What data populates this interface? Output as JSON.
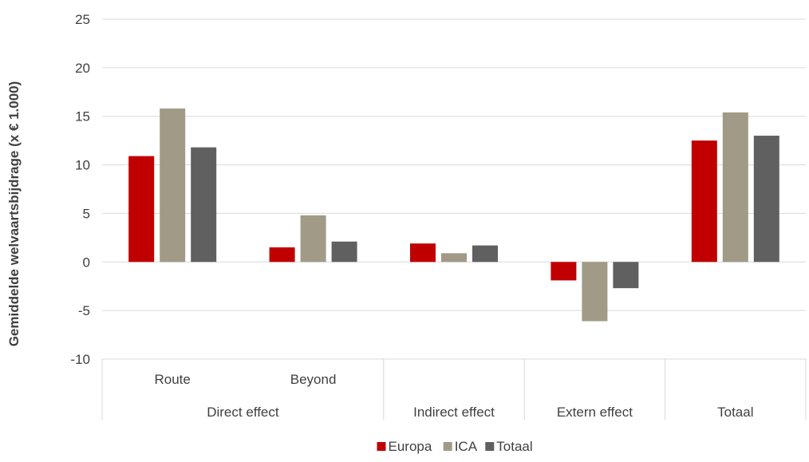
{
  "chart_data": {
    "type": "bar",
    "title": "",
    "ylabel": "Gemiddelde welvaartsbijdrage (x € 1.000)",
    "xlabel": "",
    "ylim": [
      -10,
      25
    ],
    "yticks": [
      -10,
      -5,
      0,
      5,
      10,
      15,
      20,
      25
    ],
    "categories": [
      "Route",
      "Beyond",
      "Indirect effect",
      "Extern effect",
      "Totaal"
    ],
    "groups": [
      {
        "label": "Direct effect",
        "categories": [
          "Route",
          "Beyond"
        ]
      },
      {
        "label": "Indirect effect",
        "categories": [
          "Indirect effect"
        ]
      },
      {
        "label": "Extern effect",
        "categories": [
          "Extern effect"
        ]
      },
      {
        "label": "Totaal",
        "categories": [
          "Totaal"
        ]
      }
    ],
    "series": [
      {
        "name": "Europa",
        "color": "#C00000",
        "values": [
          10.9,
          1.5,
          1.9,
          -1.9,
          12.5
        ]
      },
      {
        "name": "ICA",
        "color": "#A09A87",
        "values": [
          15.8,
          4.8,
          0.9,
          -6.1,
          15.4
        ]
      },
      {
        "name": "Totaal",
        "color": "#606060",
        "values": [
          11.8,
          2.1,
          1.7,
          -2.7,
          13.0
        ]
      }
    ],
    "grid": true,
    "legend": "bottom"
  }
}
